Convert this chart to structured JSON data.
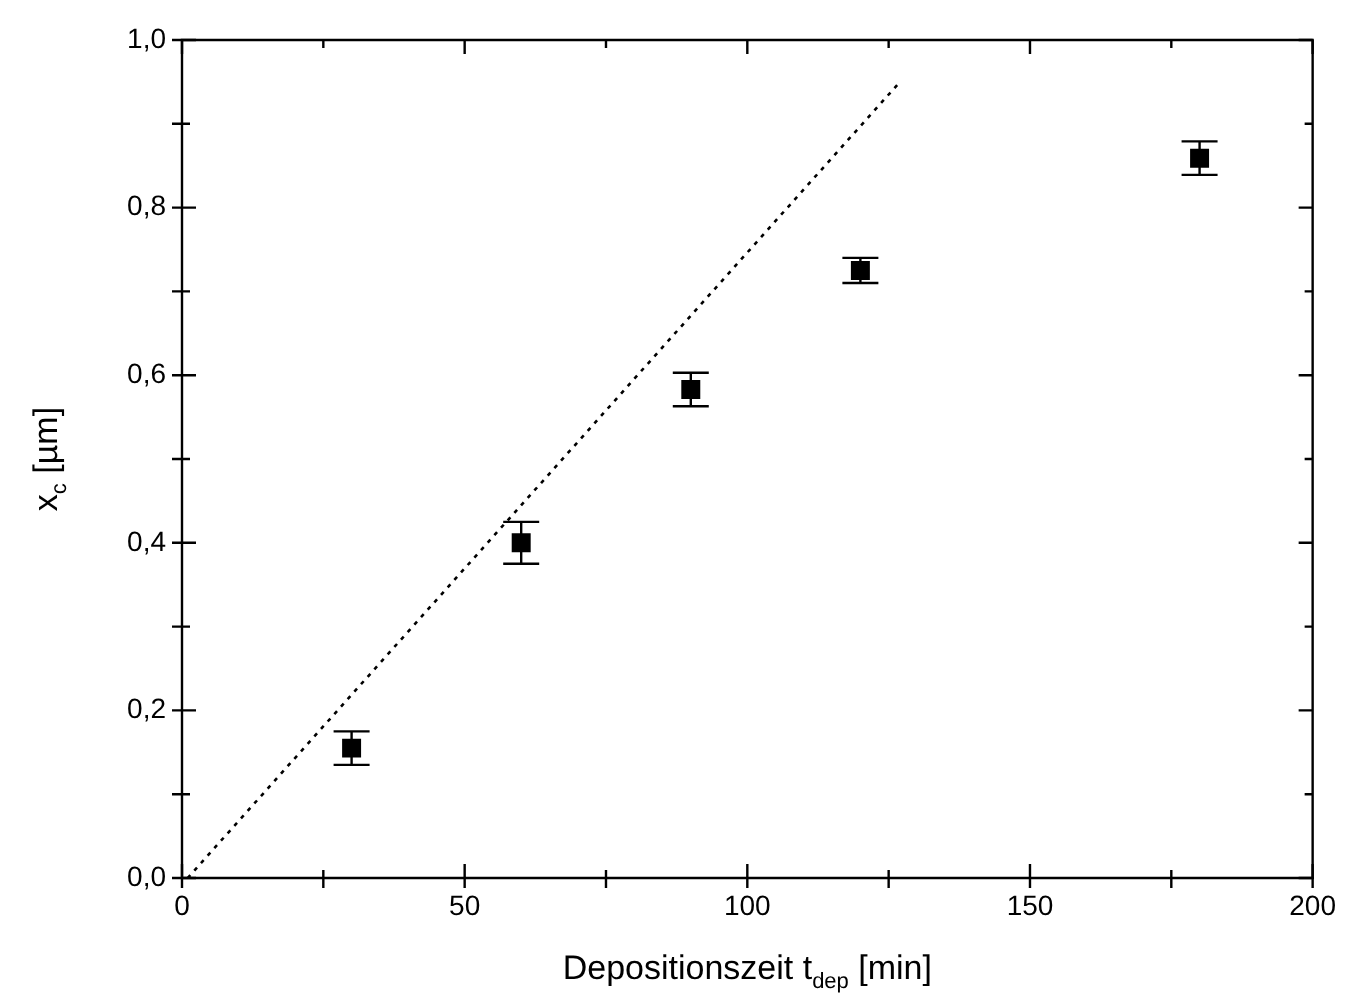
{
  "chart_data": {
    "type": "scatter",
    "xlabel": "Depositionszeit t$_{dep}$ [min]",
    "ylabel": "x$_{c}$ [µm]",
    "xlim": [
      0,
      200
    ],
    "ylim": [
      0,
      1.0
    ],
    "xticks": [
      0,
      {
        "value": 25,
        "label": null
      },
      50,
      {
        "value": 75,
        "label": null
      },
      100,
      {
        "value": 125,
        "label": null
      },
      150,
      {
        "value": 175,
        "label": null
      },
      200
    ],
    "yticks": [
      {
        "value": 0,
        "label": "0,0"
      },
      {
        "value": 0.1,
        "label": null
      },
      {
        "value": 0.2,
        "label": "0,2"
      },
      {
        "value": 0.3,
        "label": null
      },
      {
        "value": 0.4,
        "label": "0,4"
      },
      {
        "value": 0.5,
        "label": null
      },
      {
        "value": 0.6,
        "label": "0,6"
      },
      {
        "value": 0.7,
        "label": null
      },
      {
        "value": 0.8,
        "label": "0,8"
      },
      {
        "value": 0.9,
        "label": null
      },
      {
        "value": 1.0,
        "label": "1,0"
      }
    ],
    "grid": false,
    "legend": false,
    "series": [
      {
        "type": "scatter",
        "color": "#000000",
        "marker": "square",
        "x": [
          30,
          60,
          90,
          120,
          180
        ],
        "values": [
          0.155,
          0.4,
          0.583,
          0.725,
          0.859
        ],
        "errors": [
          0.02,
          0.025,
          0.02,
          0.015,
          0.02
        ]
      },
      {
        "type": "line",
        "color": "#000000",
        "line_style": "dotted",
        "marker": "none",
        "x": [
          1,
          127
        ],
        "values": [
          0,
          0.95
        ]
      }
    ]
  }
}
